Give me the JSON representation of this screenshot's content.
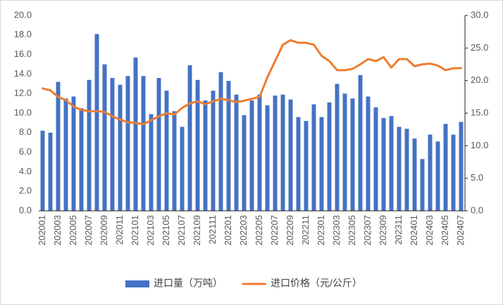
{
  "chart_data": {
    "type": "bar",
    "categories": [
      "202001",
      null,
      "202003",
      null,
      "202005",
      null,
      "202007",
      null,
      "202009",
      null,
      "202011",
      null,
      "202101",
      null,
      "202103",
      null,
      "202105",
      null,
      "202107",
      null,
      "202109",
      null,
      "202111",
      null,
      "202201",
      null,
      "202203",
      null,
      "202205",
      null,
      "202207",
      null,
      "202209",
      null,
      "202211",
      null,
      "202301",
      null,
      "202303",
      null,
      "202305",
      null,
      "202307",
      null,
      "202309",
      null,
      "202311",
      null,
      "202401",
      null,
      "202403",
      null,
      "202405",
      null,
      "202407"
    ],
    "series": [
      {
        "name": "进口量（万吨）",
        "type": "bar",
        "color": "#4472c4",
        "values": [
          8.2,
          8.0,
          13.2,
          11.5,
          11.7,
          10.5,
          13.4,
          18.1,
          15.0,
          13.6,
          12.9,
          13.8,
          15.7,
          13.8,
          9.9,
          13.6,
          12.3,
          10.2,
          8.6,
          14.9,
          13.4,
          11.3,
          12.3,
          14.2,
          13.3,
          11.9,
          9.8,
          11.3,
          11.9,
          10.8,
          11.8,
          11.9,
          11.4,
          9.6,
          9.2,
          10.9,
          9.6,
          11.1,
          13.0,
          12.0,
          11.5,
          13.9,
          11.7,
          10.6,
          9.5,
          9.7,
          8.6,
          8.4,
          7.4,
          5.3,
          7.8,
          7.1,
          8.9,
          7.8,
          9.1
        ]
      },
      {
        "name": "进口价格（元/公斤）",
        "type": "line",
        "axis": "y2",
        "color": "#ed7d31",
        "values": [
          18.8,
          18.5,
          17.5,
          17.0,
          16.0,
          15.5,
          15.3,
          15.3,
          15.2,
          14.5,
          14.0,
          13.6,
          13.5,
          13.3,
          13.9,
          14.5,
          15.0,
          14.8,
          15.8,
          16.5,
          16.8,
          16.4,
          16.8,
          17.2,
          17.0,
          16.7,
          16.9,
          17.2,
          17.5,
          20.5,
          23.0,
          25.5,
          26.2,
          25.8,
          25.8,
          25.5,
          23.8,
          23.0,
          21.6,
          21.6,
          21.8,
          22.5,
          23.3,
          23.0,
          23.6,
          22.0,
          23.3,
          23.3,
          22.2,
          22.5,
          22.6,
          22.3,
          21.6,
          21.9,
          21.9
        ]
      }
    ],
    "ylim": [
      0,
      20
    ],
    "yticks": [
      {
        "value": 0,
        "label": "0.0"
      },
      {
        "value": 2,
        "label": "2.0"
      },
      {
        "value": 4,
        "label": "4.0"
      },
      {
        "value": 6,
        "label": "6.0"
      },
      {
        "value": 8,
        "label": "8.0"
      },
      {
        "value": 10,
        "label": "10.0"
      },
      {
        "value": 12,
        "label": "12.0"
      },
      {
        "value": 14,
        "label": "14.0"
      },
      {
        "value": 16,
        "label": "16.0"
      },
      {
        "value": 18,
        "label": "18.0"
      },
      {
        "value": 20,
        "label": "20.0"
      }
    ],
    "y2lim": [
      0,
      30
    ],
    "y2ticks": [
      {
        "value": 0,
        "label": "0.0"
      },
      {
        "value": 5,
        "label": "5.0"
      },
      {
        "value": 10,
        "label": "10.0"
      },
      {
        "value": 15,
        "label": "15.0"
      },
      {
        "value": 20,
        "label": "20.0"
      },
      {
        "value": 25,
        "label": "25.0"
      },
      {
        "value": 30,
        "label": "30.0"
      }
    ],
    "grid": false,
    "legend": "bottom"
  }
}
